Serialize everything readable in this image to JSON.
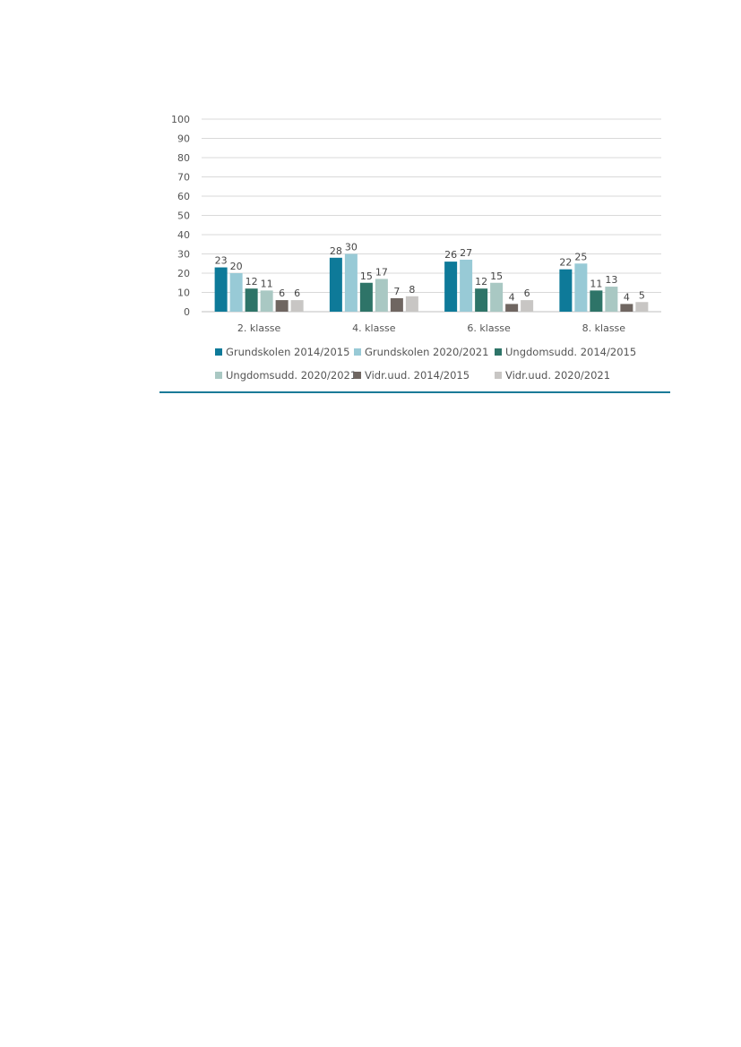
{
  "chart_data": {
    "type": "bar",
    "categories": [
      "2. klasse",
      "4. klasse",
      "6. klasse",
      "8. klasse"
    ],
    "series": [
      {
        "name": "Grundskolen 2014/2015",
        "color": "#0e7a99",
        "values": [
          23,
          28,
          26,
          22
        ]
      },
      {
        "name": "Grundskolen 2020/2021",
        "color": "#98cad6",
        "values": [
          20,
          30,
          27,
          25
        ]
      },
      {
        "name": "Ungdomsudd. 2014/2015",
        "color": "#2e7468",
        "values": [
          12,
          15,
          12,
          11
        ]
      },
      {
        "name": "Ungdomsudd. 2020/2021",
        "color": "#a9c8c3",
        "values": [
          11,
          17,
          15,
          13
        ]
      },
      {
        "name": "Vidr.uud. 2014/2015",
        "color": "#6f6661",
        "values": [
          6,
          7,
          4,
          4
        ]
      },
      {
        "name": "Vidr.uud. 2020/2021",
        "color": "#c8c6c4",
        "values": [
          6,
          8,
          6,
          5
        ]
      }
    ],
    "ylim": [
      0,
      100
    ],
    "yticks": [
      "0",
      "10",
      "20",
      "30",
      "40",
      "50",
      "60",
      "70",
      "80",
      "90",
      "100"
    ],
    "grid": true,
    "legend_position": "bottom"
  }
}
